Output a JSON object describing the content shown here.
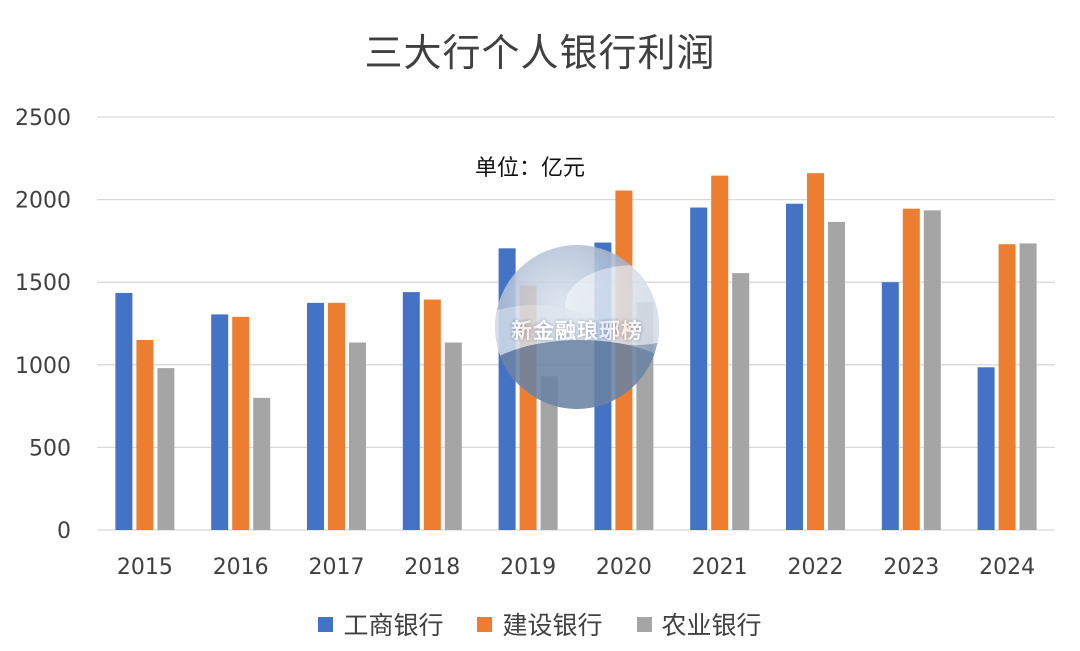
{
  "chart_data": {
    "type": "bar",
    "title": "三大行个人银行利润",
    "unit_note": "单位：亿元",
    "xlabel": "",
    "ylabel": "",
    "ylim": [
      0,
      2500
    ],
    "yticks": [
      0,
      500,
      1000,
      1500,
      2000,
      2500
    ],
    "grid": true,
    "legend_position": "bottom",
    "categories": [
      "2015",
      "2016",
      "2017",
      "2018",
      "2019",
      "2020",
      "2021",
      "2022",
      "2023",
      "2024"
    ],
    "series": [
      {
        "name": "工商银行",
        "color": "#4472C4",
        "values": [
          1435,
          1305,
          1375,
          1440,
          1705,
          1740,
          1952,
          1975,
          1500,
          985
        ]
      },
      {
        "name": "建设银行",
        "color": "#ED7D31",
        "values": [
          1150,
          1290,
          1375,
          1395,
          1480,
          2055,
          2145,
          2160,
          1945,
          1730
        ]
      },
      {
        "name": "农业银行",
        "color": "#A5A5A5",
        "values": [
          980,
          800,
          1135,
          1135,
          930,
          1380,
          1555,
          1865,
          1935,
          1735
        ]
      }
    ]
  },
  "watermark": {
    "text": "新金融琅琊榜"
  }
}
